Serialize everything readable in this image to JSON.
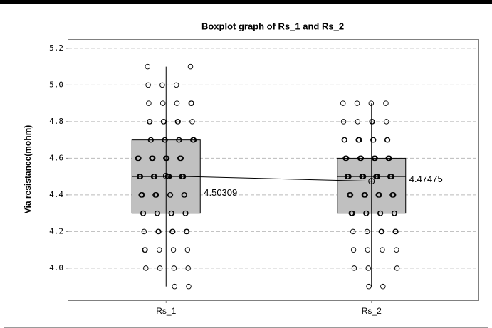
{
  "chart_data": {
    "type": "box",
    "title": "Boxplot graph of Rs_1 and Rs_2",
    "ylabel": "Via resistance(mohm)",
    "categories": [
      "Rs_1",
      "Rs_2"
    ],
    "ylim": [
      3.825,
      5.25
    ],
    "yticks": [
      {
        "value": 4,
        "label": "4.0"
      },
      4.2,
      4.4,
      4.6,
      4.8,
      {
        "value": 5,
        "label": "5.0"
      },
      5.2
    ],
    "grid": true,
    "box_color": "#c0c0c0",
    "boxes": [
      {
        "whisker_low": 3.9,
        "q1": 4.3,
        "median": 4.5,
        "q3": 4.7,
        "whisker_high": 5.1,
        "mean": 4.50309,
        "points": [
          5.1,
          5.1,
          5,
          5,
          5,
          4.9,
          4.9,
          4.9,
          4.9,
          4.9,
          4.8,
          4.8,
          4.8,
          4.8,
          4.8,
          4.8,
          4.8,
          4.7,
          4.7,
          4.7,
          4.7,
          4.7,
          4.7,
          4.7,
          4.7,
          4.7,
          4.6,
          4.6,
          4.6,
          4.6,
          4.6,
          4.6,
          4.6,
          4.6,
          4.6,
          4.6,
          4.6,
          4.6,
          4.5,
          4.5,
          4.5,
          4.5,
          4.5,
          4.5,
          4.5,
          4.5,
          4.5,
          4.5,
          4.5,
          4.5,
          4.5,
          4.5,
          4.4,
          4.4,
          4.4,
          4.4,
          4.4,
          4.4,
          4.4,
          4.4,
          4.4,
          4.4,
          4.3,
          4.3,
          4.3,
          4.3,
          4.3,
          4.3,
          4.3,
          4.3,
          4.2,
          4.2,
          4.2,
          4.2,
          4.2,
          4.2,
          4.2,
          4.1,
          4.1,
          4.1,
          4.1,
          4.1,
          4,
          4,
          4,
          4,
          3.9,
          3.9
        ]
      },
      {
        "whisker_low": 3.9,
        "q1": 4.3,
        "median": 4.5,
        "q3": 4.6,
        "whisker_high": 4.9,
        "mean": 4.47475,
        "points": [
          4.9,
          4.9,
          4.9,
          4.9,
          4.8,
          4.8,
          4.8,
          4.8,
          4.8,
          4.7,
          4.7,
          4.7,
          4.7,
          4.7,
          4.7,
          4.7,
          4.7,
          4.7,
          4.6,
          4.6,
          4.6,
          4.6,
          4.6,
          4.6,
          4.6,
          4.6,
          4.6,
          4.6,
          4.6,
          4.6,
          4.5,
          4.5,
          4.5,
          4.5,
          4.5,
          4.5,
          4.5,
          4.5,
          4.5,
          4.5,
          4.5,
          4.5,
          4.5,
          4.5,
          4.5,
          4.5,
          4.4,
          4.4,
          4.4,
          4.4,
          4.4,
          4.4,
          4.4,
          4.4,
          4.4,
          4.4,
          4.4,
          4.4,
          4.3,
          4.3,
          4.3,
          4.3,
          4.3,
          4.3,
          4.3,
          4.3,
          4.3,
          4.2,
          4.2,
          4.2,
          4.2,
          4.2,
          4.2,
          4.1,
          4.1,
          4.1,
          4.1,
          4,
          4,
          4,
          3.9,
          3.9
        ]
      }
    ]
  }
}
